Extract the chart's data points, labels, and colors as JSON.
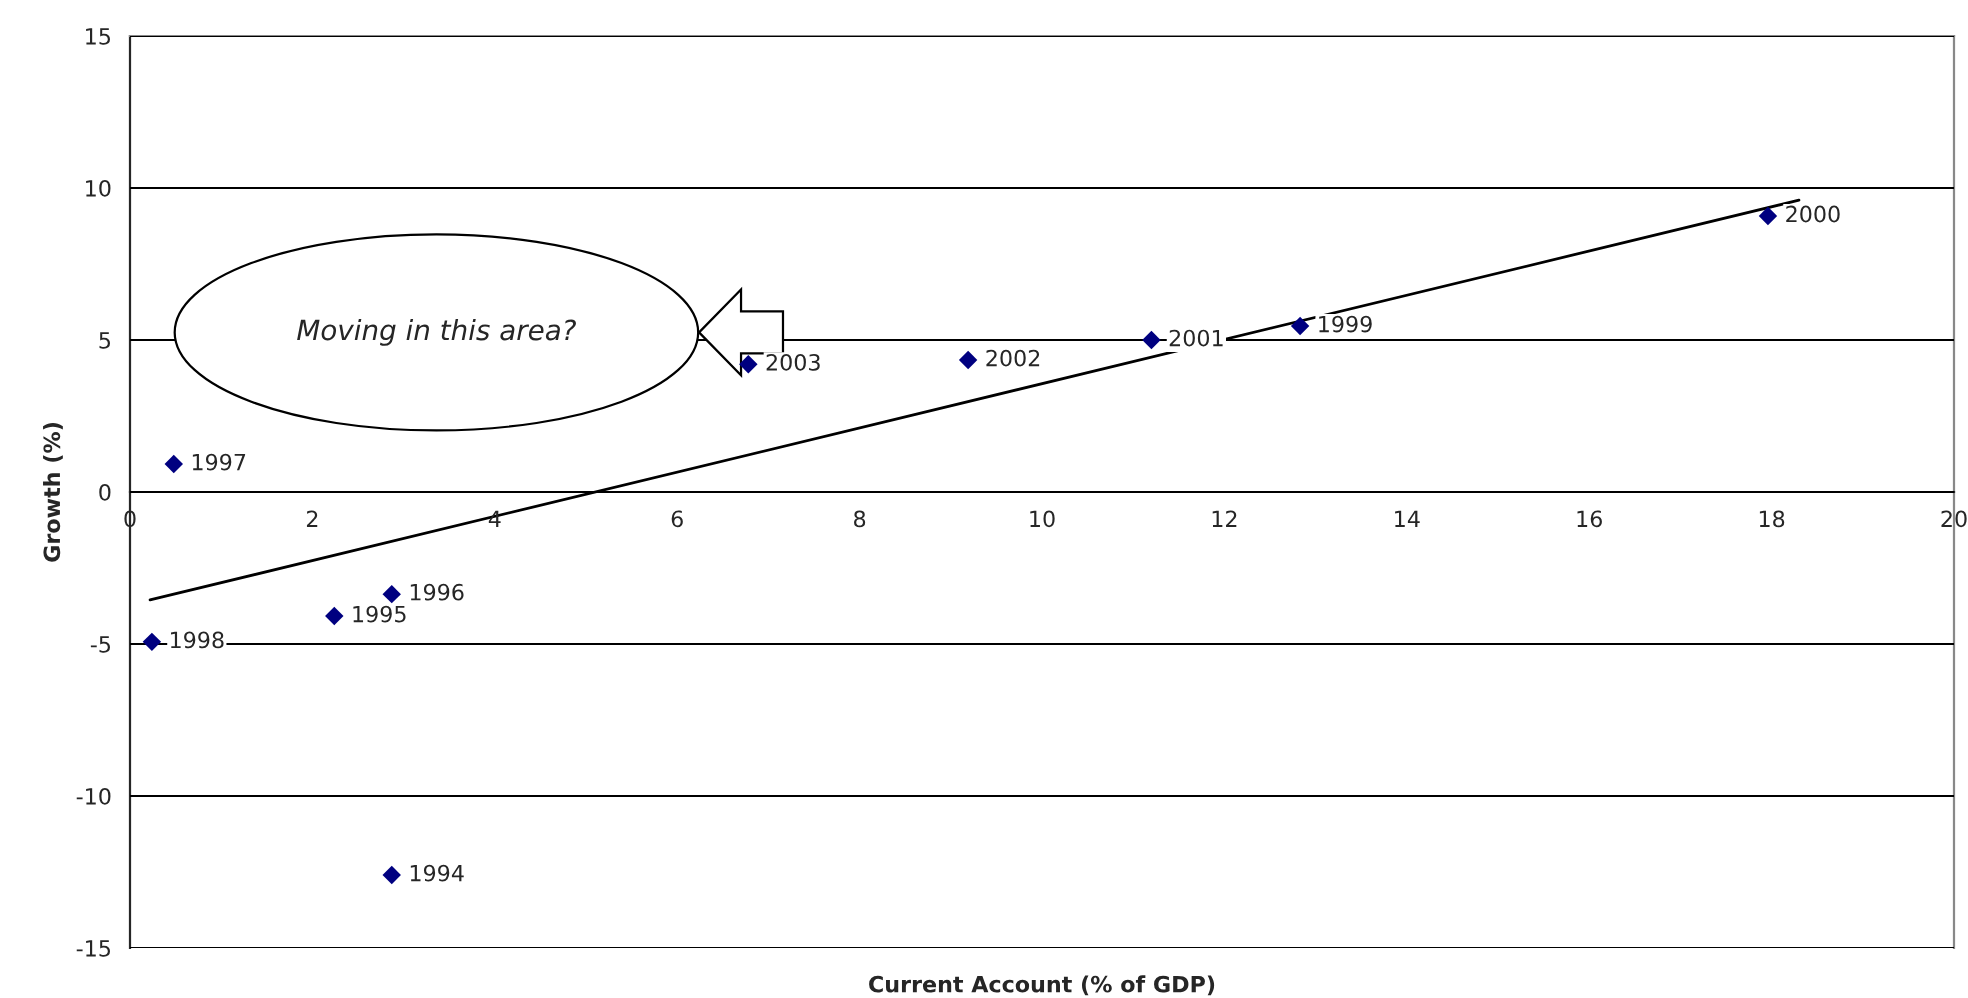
{
  "chart_data": {
    "type": "scatter",
    "xlabel": "Current Account (% of GDP)",
    "ylabel": "Growth (%)",
    "series": [
      {
        "type": "scatter",
        "color": "#000080",
        "marker": "diamond",
        "x": [
          2.87,
          2.24,
          2.87,
          0.48,
          0.24,
          12.83,
          17.96,
          11.2,
          9.19,
          6.78
        ],
        "values": [
          -12.6,
          -4.08,
          -3.36,
          0.92,
          -4.93,
          5.46,
          9.08,
          5.0,
          4.34,
          4.2
        ]
      },
      {
        "type": "line",
        "color": "#000000",
        "marker": "none",
        "line_style": "solid",
        "x": [
          0.22,
          18.3
        ],
        "values": [
          -3.55,
          9.6
        ]
      }
    ],
    "annotations": [
      {
        "text": "1994",
        "x": 2.87,
        "y": -12.6
      },
      {
        "text": "1995",
        "x": 2.24,
        "y": -4.08
      },
      {
        "text": "1996",
        "x": 2.87,
        "y": -3.36
      },
      {
        "text": "1997",
        "x": 0.48,
        "y": 0.92
      },
      {
        "text": "1998",
        "x": 0.24,
        "y": -4.93
      },
      {
        "text": "1999",
        "x": 12.83,
        "y": 5.46
      },
      {
        "text": "2000",
        "x": 17.96,
        "y": 9.08
      },
      {
        "text": "2001",
        "x": 11.2,
        "y": 5.0
      },
      {
        "text": "2002",
        "x": 9.19,
        "y": 4.34
      },
      {
        "text": "2003",
        "x": 6.78,
        "y": 4.2
      },
      "Moving in this area?"
    ],
    "xlim": [
      0,
      20
    ],
    "xticks": [
      0,
      2,
      4,
      6,
      8,
      10,
      12,
      14,
      16,
      18,
      20
    ],
    "ylim": [
      -15,
      15
    ],
    "yticks": [
      -15,
      -10,
      -5,
      0,
      5,
      10,
      15
    ],
    "grid": "y",
    "legend": false
  }
}
